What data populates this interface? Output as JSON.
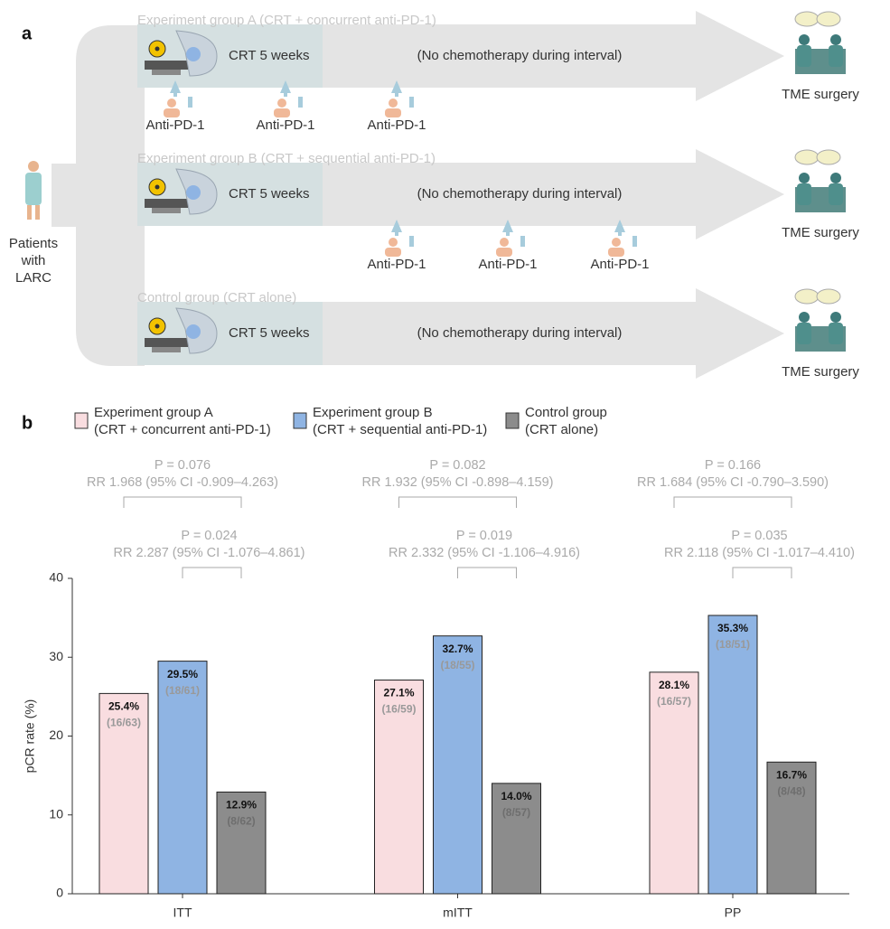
{
  "panel_labels": [
    "a",
    "b"
  ],
  "diagram": {
    "source": [
      "Patients",
      "with",
      "LARC"
    ],
    "groups": [
      {
        "title": "Experiment group A (CRT + concurrent anti-PD-1)",
        "treatment": "CRT 5 weeks",
        "interval": "(No chemotherapy during interval)",
        "destination": "TME surgery",
        "doses": [
          "Anti-PD-1",
          "Anti-PD-1",
          "Anti-PD-1"
        ]
      },
      {
        "title": "Experiment group B (CRT + sequential anti-PD-1)",
        "treatment": "CRT 5 weeks",
        "interval": "(No chemotherapy during interval)",
        "destination": "TME surgery",
        "doses": [
          "Anti-PD-1",
          "Anti-PD-1",
          "Anti-PD-1"
        ]
      },
      {
        "title": "Control group (CRT alone)",
        "treatment": "CRT 5 weeks",
        "interval": "(No chemotherapy during interval)",
        "destination": "TME surgery",
        "doses": []
      }
    ]
  },
  "chart_data": {
    "type": "bar",
    "y_label": "pCR rate (%)",
    "categories": [
      "ITT",
      "mITT",
      "PP"
    ],
    "ylim": [
      0,
      40
    ],
    "yticks": [
      0,
      10,
      20,
      30,
      40
    ],
    "series": [
      {
        "name": "Experiment group A",
        "detail": "(CRT + concurrent anti-PD-1)",
        "color": "#f9dde0",
        "values": [
          25.4,
          27.1,
          28.1
        ],
        "value_labels": [
          "25.4%",
          "27.1%",
          "28.1%"
        ],
        "counts": [
          "(16/63)",
          "(16/59)",
          "(16/57)"
        ]
      },
      {
        "name": "Experiment group B",
        "detail": "(CRT + sequential anti-PD-1)",
        "color": "#8fb4e3",
        "values": [
          29.5,
          32.7,
          35.3
        ],
        "value_labels": [
          "29.5%",
          "32.7%",
          "35.3%"
        ],
        "counts": [
          "(18/61)",
          "(18/55)",
          "(18/51)"
        ]
      },
      {
        "name": "Control group",
        "detail": "(CRT alone)",
        "color": "#8c8c8c",
        "values": [
          12.9,
          14.0,
          16.7
        ],
        "value_labels": [
          "12.9%",
          "14.0%",
          "16.7%"
        ],
        "counts": [
          "(8/62)",
          "(8/57)",
          "(8/48)"
        ]
      }
    ],
    "comparisons": [
      [
        {
          "p": "P = 0.076",
          "rr": "RR 1.968 (95% CI -0.909–4.263)"
        },
        {
          "p": "P = 0.024",
          "rr": "RR 2.287 (95% CI -1.076–4.861)"
        }
      ],
      [
        {
          "p": "P = 0.082",
          "rr": "RR 1.932 (95% CI -0.898–4.159)"
        },
        {
          "p": "P = 0.019",
          "rr": "RR 2.332 (95% CI -1.106–4.916)"
        }
      ],
      [
        {
          "p": "P = 0.166",
          "rr": "RR 1.684 (95% CI -0.790–3.590)"
        },
        {
          "p": "P = 0.035",
          "rr": "RR 2.118 (95% CI -1.017–4.410)"
        }
      ]
    ]
  }
}
